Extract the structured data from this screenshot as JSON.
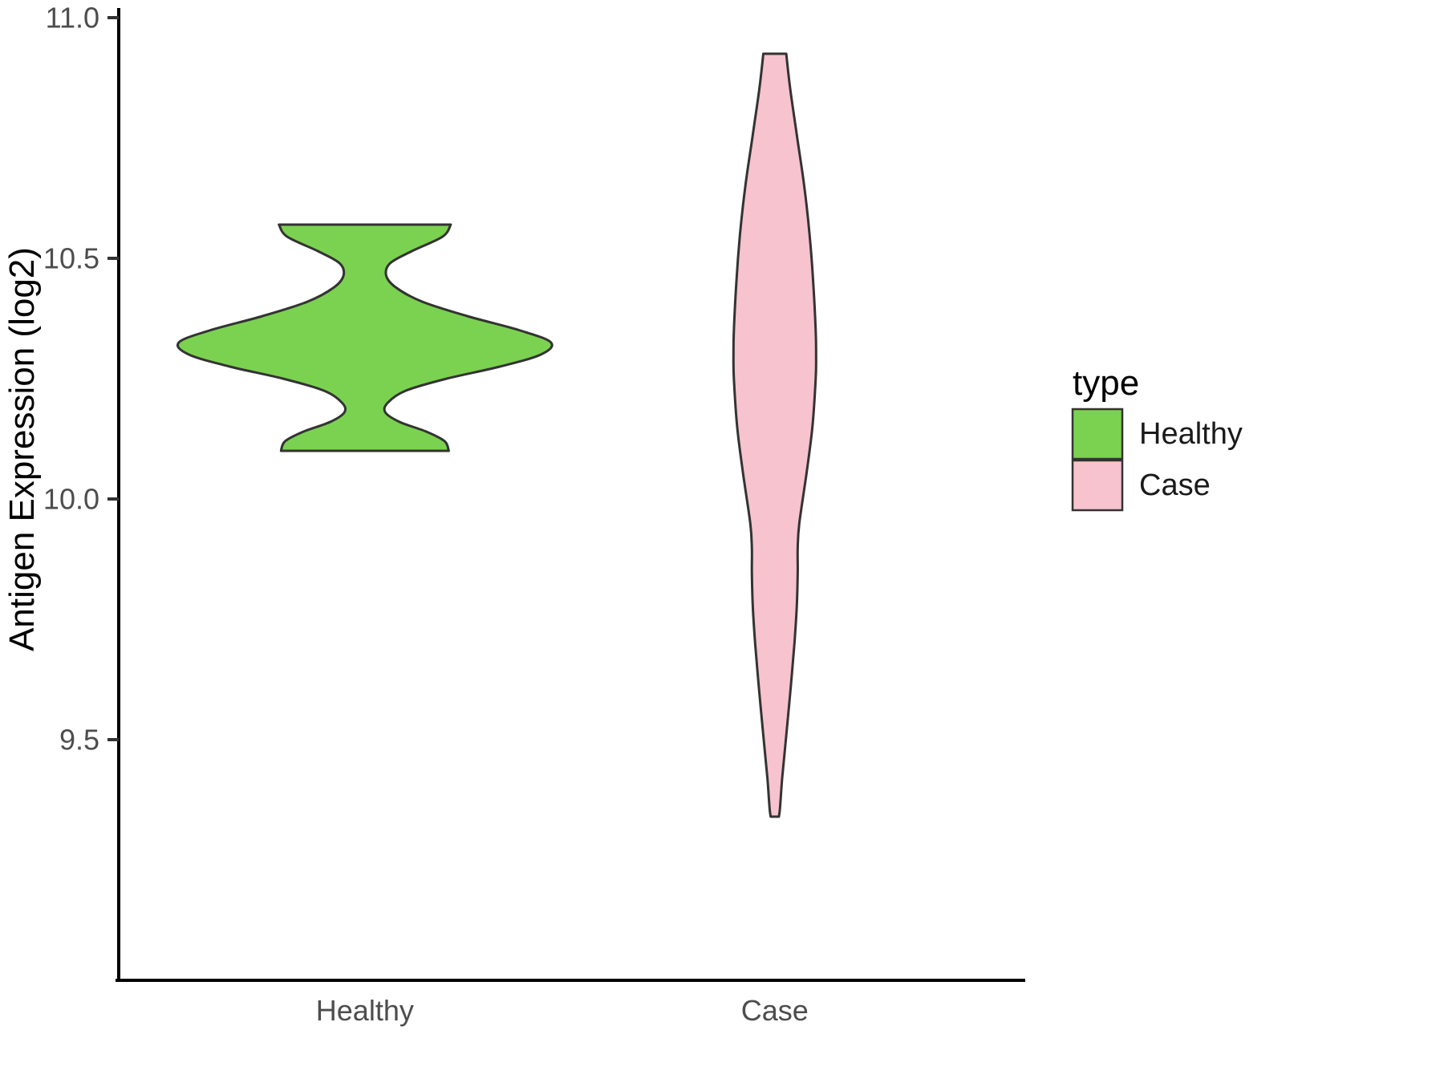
{
  "chart_data": {
    "type": "violin",
    "title": "",
    "xlabel": "",
    "ylabel": "Antigen Expression (log2)",
    "ylim": [
      9.0,
      11.0
    ],
    "yticks": [
      11.0,
      10.5,
      10.0,
      9.5
    ],
    "categories": [
      "Healthy",
      "Case"
    ],
    "grid": false,
    "legend": {
      "title": "type",
      "position": "right",
      "entries": [
        {
          "label": "Healthy",
          "color": "#7BD250"
        },
        {
          "label": "Case",
          "color": "#F6C3CF"
        }
      ]
    },
    "series": [
      {
        "name": "Healthy",
        "color": "#7BD250",
        "range": [
          10.1,
          10.57
        ],
        "profile": [
          [
            10.57,
            0.21
          ],
          [
            10.545,
            0.19
          ],
          [
            10.515,
            0.115
          ],
          [
            10.49,
            0.062
          ],
          [
            10.465,
            0.052
          ],
          [
            10.44,
            0.075
          ],
          [
            10.41,
            0.14
          ],
          [
            10.38,
            0.25
          ],
          [
            10.35,
            0.38
          ],
          [
            10.325,
            0.455
          ],
          [
            10.3,
            0.43
          ],
          [
            10.275,
            0.33
          ],
          [
            10.25,
            0.2
          ],
          [
            10.225,
            0.1
          ],
          [
            10.2,
            0.056
          ],
          [
            10.18,
            0.05
          ],
          [
            10.16,
            0.085
          ],
          [
            10.14,
            0.15
          ],
          [
            10.12,
            0.195
          ],
          [
            10.1,
            0.205
          ]
        ]
      },
      {
        "name": "Case",
        "color": "#F6C3CF",
        "range": [
          9.34,
          10.925
        ],
        "profile": [
          [
            10.925,
            0.028
          ],
          [
            10.85,
            0.038
          ],
          [
            10.75,
            0.055
          ],
          [
            10.65,
            0.072
          ],
          [
            10.55,
            0.085
          ],
          [
            10.45,
            0.094
          ],
          [
            10.35,
            0.1
          ],
          [
            10.3,
            0.101
          ],
          [
            10.25,
            0.1
          ],
          [
            10.15,
            0.092
          ],
          [
            10.05,
            0.077
          ],
          [
            9.95,
            0.06
          ],
          [
            9.9,
            0.056
          ],
          [
            9.85,
            0.056
          ],
          [
            9.78,
            0.054
          ],
          [
            9.7,
            0.048
          ],
          [
            9.6,
            0.038
          ],
          [
            9.5,
            0.027
          ],
          [
            9.42,
            0.018
          ],
          [
            9.36,
            0.013
          ],
          [
            9.34,
            0.01
          ]
        ]
      }
    ]
  },
  "style": {
    "violin_stroke": "#333333",
    "axis_color": "#000000",
    "tick_label_color": "#4d4d4d",
    "background": "#ffffff"
  }
}
